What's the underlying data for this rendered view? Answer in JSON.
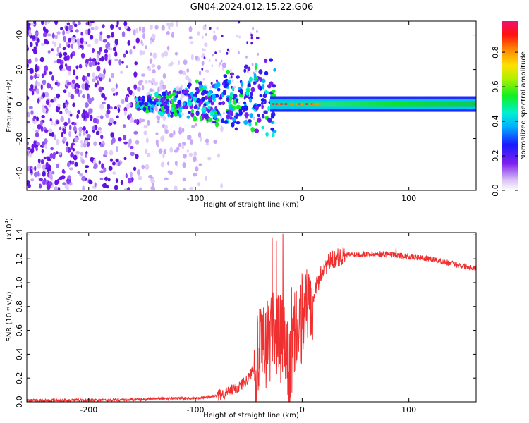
{
  "title": "GN04.2024.012.15.22.G06",
  "chart_data": [
    {
      "type": "heatmap",
      "title": "GN04.2024.012.15.22.G06",
      "xlabel": "Height of straight line (km)",
      "ylabel": "Frequency (Hz)",
      "xlim": [
        -258,
        163
      ],
      "ylim": [
        -50,
        48
      ],
      "xticks": [
        -200,
        -100,
        0,
        100
      ],
      "xtick_labels": [
        "-200",
        "-100",
        "0",
        "100"
      ],
      "yticks": [
        -40,
        -20,
        0,
        20,
        40
      ],
      "ytick_labels": [
        "-40",
        "-20",
        "0",
        "20",
        "40"
      ],
      "colorbar": {
        "label": "Normalized spectral amplitude",
        "range": [
          0.0,
          0.98
        ],
        "ticks": [
          0.0,
          0.2,
          0.4,
          0.6,
          0.8
        ],
        "tick_labels": [
          "0.0",
          "0.2",
          "0.4",
          "0.6",
          "0.8"
        ],
        "colormap": "rainbow (white-violet-blue-cyan-green-yellow-red-magenta)"
      },
      "features": {
        "noise_region_x": [
          -258,
          -120
        ],
        "signal_start_x": -155,
        "stable_line_x": [
          -30,
          163
        ],
        "stable_line_frequency": 0,
        "stable_line_halfwidth_hz": 3
      }
    },
    {
      "type": "line",
      "xlabel": "Height of straight line (km)",
      "ylabel": "SNR (10 * v/v)",
      "yscale_label": "(x10",
      "yscale_exp": "4",
      "xlim": [
        -258,
        163
      ],
      "ylim": [
        0,
        1.42
      ],
      "xticks": [
        -200,
        -100,
        0,
        100
      ],
      "xtick_labels": [
        "-200",
        "-100",
        "0",
        "100"
      ],
      "yticks": [
        0.0,
        0.2,
        0.4,
        0.6,
        0.8,
        1.0,
        1.2,
        1.4
      ],
      "ytick_labels": [
        "0.0",
        "0.2",
        "0.4",
        "0.6",
        "0.8",
        "1.0",
        "1.2",
        "1.4"
      ],
      "color": "#f03030",
      "series": [
        {
          "name": "SNR",
          "x": [
            -258,
            -200,
            -150,
            -120,
            -100,
            -80,
            -70,
            -60,
            -50,
            -45,
            -40,
            -35,
            -30,
            -27,
            -25,
            -22,
            -20,
            -18,
            -16,
            -14,
            -12,
            -10,
            -8,
            -5,
            -3,
            0,
            5,
            10,
            15,
            20,
            25,
            30,
            40,
            50,
            60,
            80,
            100,
            120,
            140,
            163
          ],
          "y": [
            0.01,
            0.015,
            0.02,
            0.03,
            0.03,
            0.05,
            0.08,
            0.12,
            0.2,
            0.3,
            0.4,
            0.45,
            0.55,
            0.75,
            0.45,
            0.6,
            0.5,
            0.55,
            0.4,
            0.3,
            0.25,
            0.35,
            0.5,
            0.65,
            0.5,
            0.75,
            0.82,
            0.9,
            1.0,
            1.12,
            1.17,
            1.2,
            1.23,
            1.24,
            1.24,
            1.24,
            1.22,
            1.2,
            1.16,
            1.12
          ]
        }
      ],
      "peaks": [
        {
          "x": -28,
          "y": 1.38
        },
        {
          "x": -24,
          "y": 1.35
        },
        {
          "x": -18,
          "y": 1.41
        },
        {
          "x": -10,
          "y": 0.96
        },
        {
          "x": 8,
          "y": 1.02
        },
        {
          "x": 88,
          "y": 1.3
        }
      ]
    }
  ]
}
